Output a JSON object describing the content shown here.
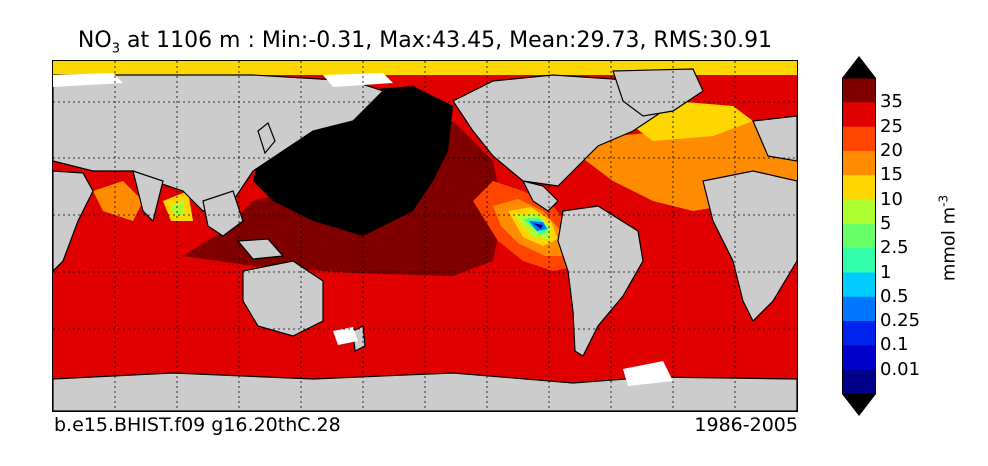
{
  "title": {
    "species": "NO",
    "subscript": "3",
    "rest": " at 1106 m : Min:-0.31, Max:43.45, Mean:29.73, RMS:30.91"
  },
  "footer": {
    "case_name": "b.e15.BHIST.f09 g16.20thC.28",
    "years": "1986-2005"
  },
  "colorbar": {
    "units_base": "mmol m",
    "units_exp": "-3",
    "levels": [
      "35",
      "25",
      "20",
      "15",
      "10",
      "5",
      "2.5",
      "1",
      "0.5",
      "0.25",
      "0.1",
      "0.01"
    ],
    "colors": [
      "#800000",
      "#e00000",
      "#ff4500",
      "#ff8c00",
      "#ffd700",
      "#adff2f",
      "#66ff66",
      "#33ffaa",
      "#00ccff",
      "#0077ff",
      "#0022ee",
      "#0000cc",
      "#000088"
    ],
    "over_color": "#000000",
    "under_color": "#000000"
  },
  "map": {
    "land_color": "#cccccc",
    "missing_color": "#ffffff",
    "coastline_color": "#000000",
    "grid": "dotted"
  }
}
